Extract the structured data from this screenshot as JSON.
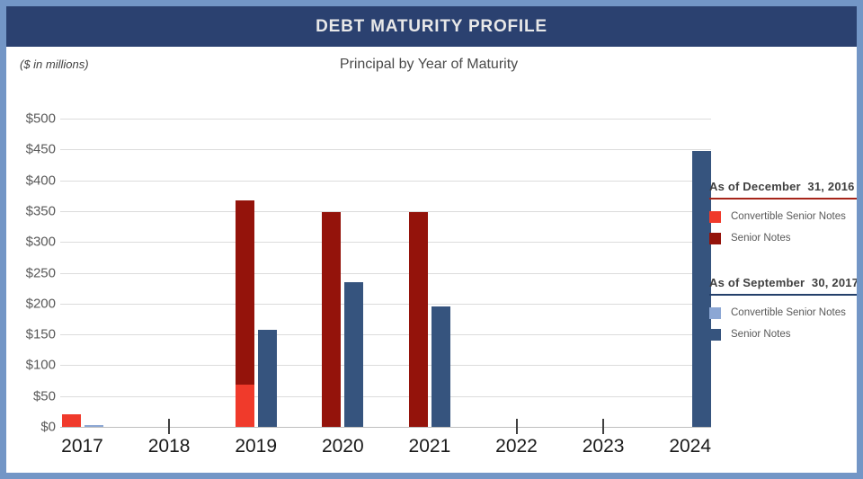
{
  "header": {
    "title": "DEBT MATURITY PROFILE"
  },
  "units_note": "($ in millions)",
  "chart_data": {
    "type": "bar",
    "title": "Principal by Year of Maturity",
    "units": "$ in millions",
    "categories": [
      "2017",
      "2018",
      "2019",
      "2020",
      "2021",
      "2022",
      "2023",
      "2024"
    ],
    "series": [
      {
        "name": "Convertible Senior Notes",
        "as_of": "As of December  31, 2016",
        "group": 1,
        "color": "#F03A2B",
        "values": [
          21,
          0,
          68,
          0,
          0,
          0,
          0,
          0
        ]
      },
      {
        "name": "Senior Notes",
        "as_of": "As of December  31, 2016",
        "group": 1,
        "color": "#94130B",
        "values": [
          0,
          0,
          300,
          348,
          348,
          0,
          0,
          0
        ]
      },
      {
        "name": "Convertible Senior Notes",
        "as_of": "As of September  30, 2017",
        "group": 2,
        "color": "#8CA7D4",
        "values": [
          3,
          0,
          0,
          0,
          0,
          0,
          0,
          0
        ]
      },
      {
        "name": "Senior Notes",
        "as_of": "As of September  30, 2017",
        "group": 2,
        "color": "#36547E",
        "values": [
          0,
          0,
          158,
          234,
          196,
          0,
          0,
          448
        ]
      }
    ],
    "ylim": [
      0,
      500
    ],
    "ytick_step": 50,
    "ytick_labels": [
      "$0",
      "$50",
      "$100",
      "$150",
      "$200",
      "$250",
      "$300",
      "$350",
      "$400",
      "$450",
      "$500"
    ],
    "grid": true,
    "legend_position": "right"
  },
  "legend": {
    "groups": [
      {
        "title": "As of December  31, 2016",
        "accent": "#A6251A",
        "items": [
          {
            "label": "Convertible Senior Notes",
            "color": "#F03A2B"
          },
          {
            "label": "Senior Notes",
            "color": "#94130B"
          }
        ]
      },
      {
        "title": "As of September  30, 2017",
        "accent": "#24406B",
        "items": [
          {
            "label": "Convertible Senior Notes",
            "color": "#8CA7D4"
          },
          {
            "label": "Senior Notes",
            "color": "#36547E"
          }
        ]
      }
    ]
  },
  "colors": {
    "frame_border": "#7396C6",
    "header_bg": "#2B4170",
    "header_text": "#E8E8E8",
    "gridline": "#DCDCDC",
    "axis_line": "#BFBFBF",
    "ytick_text": "#595959",
    "xtick_text": "#1A1A1A"
  }
}
